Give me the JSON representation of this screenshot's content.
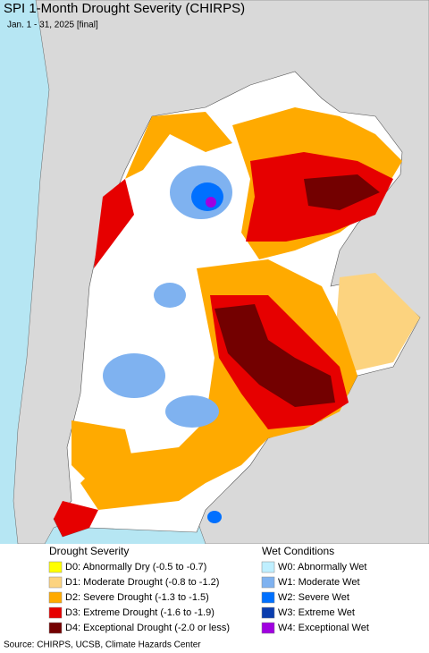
{
  "header": {
    "title": "SPI 1-Month Drought Severity (CHIRPS)",
    "subtitle": "Jan. 1 - 31, 2025 [final]"
  },
  "legend": {
    "groups": [
      {
        "title": "Drought Severity",
        "items": [
          {
            "label": "D0: Abnormally Dry (-0.5 to -0.7)",
            "color": "#ffff00"
          },
          {
            "label": "D1: Moderate Drought (-0.8 to -1.2)",
            "color": "#fcd37f"
          },
          {
            "label": "D2: Severe Drought (-1.3 to -1.5)",
            "color": "#ffaa00"
          },
          {
            "label": "D3: Extreme Drought (-1.6 to -1.9)",
            "color": "#e60000"
          },
          {
            "label": "D4: Exceptional Drought (-2.0 or less)",
            "color": "#730000"
          }
        ]
      },
      {
        "title": "Wet Conditions",
        "items": [
          {
            "label": "W0: Abnormally Wet",
            "color": "#bfefff"
          },
          {
            "label": "W1: Moderate Wet",
            "color": "#7fb2f0"
          },
          {
            "label": "W2: Severe Wet",
            "color": "#0070ff"
          },
          {
            "label": "W3: Extreme Wet",
            "color": "#0a3dae"
          },
          {
            "label": "W4: Exceptional Wet",
            "color": "#a000e0"
          }
        ]
      }
    ]
  },
  "footer": {
    "source": "Source: CHIRPS, UCSB, Climate Hazards Center"
  }
}
